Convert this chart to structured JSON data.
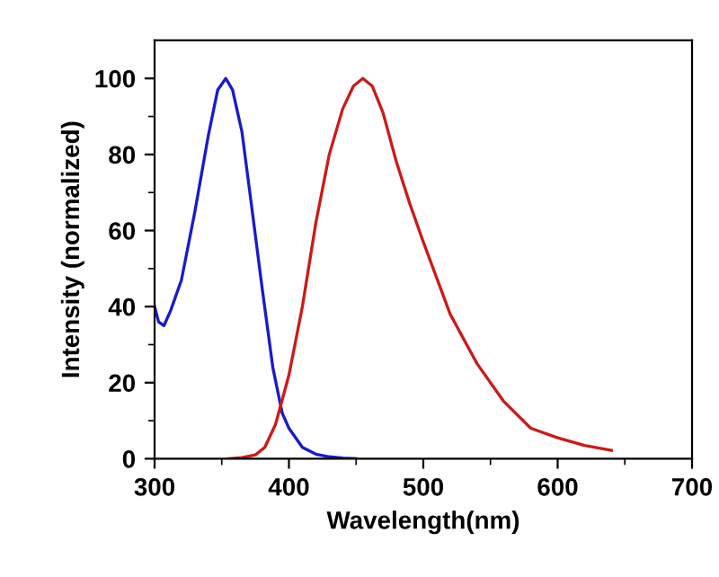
{
  "chart_data": {
    "type": "line",
    "xlabel": "Wavelength(nm)",
    "ylabel": "Intensity (normalized)",
    "xlim": [
      300,
      700
    ],
    "ylim": [
      0,
      110
    ],
    "xticks": [
      300,
      {
        "value": 350,
        "label": null
      },
      400,
      {
        "value": 450,
        "label": null
      },
      500,
      {
        "value": 550,
        "label": null
      },
      600,
      {
        "value": 650,
        "label": null
      },
      700
    ],
    "yticks": [
      0,
      {
        "value": 10,
        "label": null
      },
      20,
      {
        "value": 30,
        "label": null
      },
      40,
      {
        "value": 50,
        "label": null
      },
      60,
      {
        "value": 70,
        "label": null
      },
      80,
      {
        "value": 90,
        "label": null
      },
      100
    ],
    "grid": false,
    "legend": false,
    "series": [
      {
        "color": "#1a1acc",
        "x": [
          300,
          303,
          307,
          312,
          320,
          330,
          340,
          347,
          353,
          358,
          365,
          372,
          380,
          388,
          395,
          400,
          410,
          420,
          430,
          440,
          450
        ],
        "values": [
          40,
          36,
          35,
          39,
          47,
          65,
          85,
          97,
          100,
          97,
          86,
          67,
          45,
          24,
          12,
          8,
          3,
          1.2,
          0.5,
          0.2,
          0
        ]
      },
      {
        "color": "#cc1a1a",
        "x": [
          355,
          365,
          375,
          382,
          390,
          400,
          410,
          420,
          430,
          440,
          448,
          455,
          462,
          470,
          480,
          490,
          500,
          520,
          540,
          560,
          580,
          600,
          620,
          640
        ],
        "values": [
          0,
          0.3,
          1,
          3,
          9,
          22,
          40,
          62,
          80,
          92,
          98,
          100,
          98,
          91,
          78,
          67,
          57,
          38,
          25,
          15,
          8,
          5.5,
          3.5,
          2.2
        ]
      }
    ]
  }
}
